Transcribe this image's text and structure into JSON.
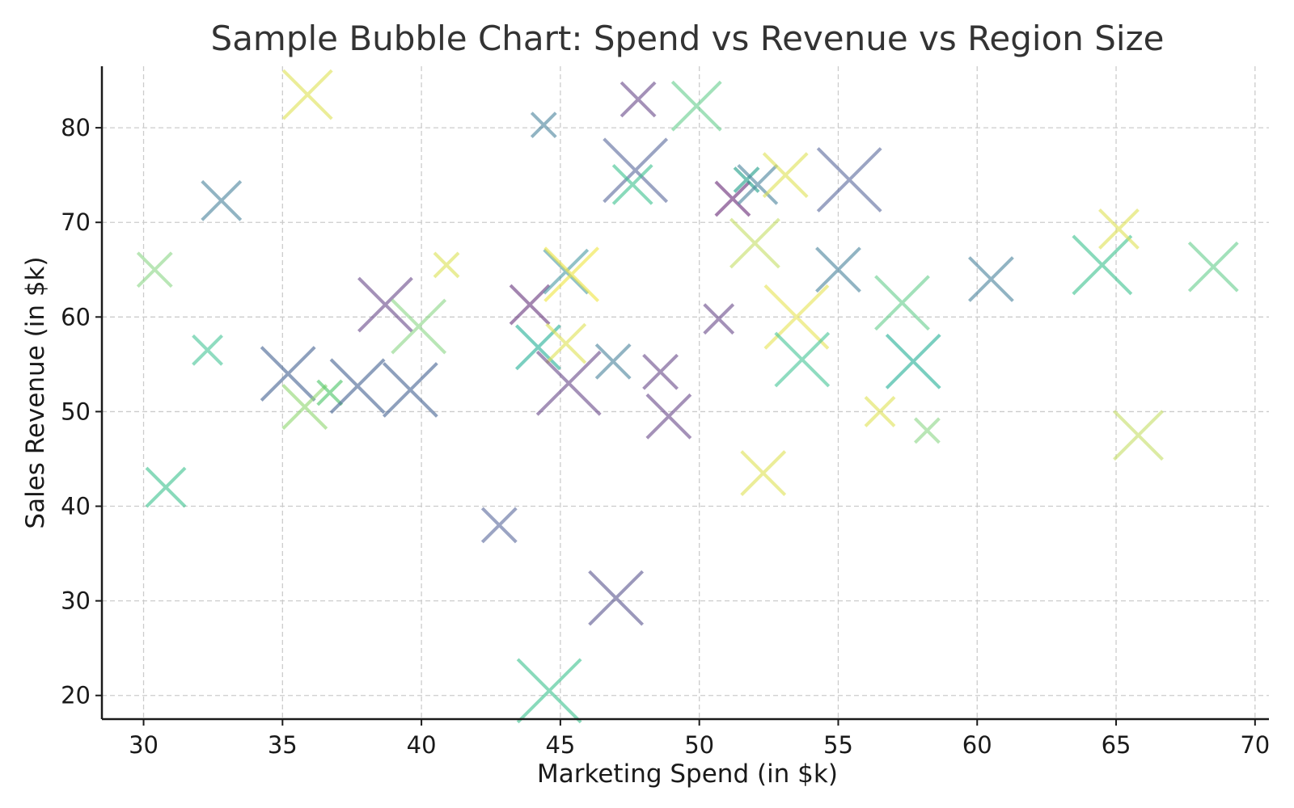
{
  "chart_data": {
    "type": "scatter",
    "marker": "x",
    "title": "Sample Bubble Chart: Spend vs Revenue vs Region Size",
    "xlabel": "Marketing Spend (in $k)",
    "ylabel": "Sales Revenue (in $k)",
    "xlim": [
      28.5,
      70.5
    ],
    "ylim": [
      17.5,
      86.5
    ],
    "xticks": [
      "30",
      "35",
      "40",
      "45",
      "50",
      "55",
      "60",
      "65",
      "70"
    ],
    "yticks": [
      "20",
      "30",
      "40",
      "50",
      "60",
      "70",
      "80"
    ],
    "grid": true,
    "legend": "none",
    "points": [
      {
        "x": 35.9,
        "y": 83.5,
        "size": 1.0,
        "color": "#e0e35a"
      },
      {
        "x": 32.8,
        "y": 72.3,
        "size": 0.8,
        "color": "#4f87a0"
      },
      {
        "x": 30.4,
        "y": 65.0,
        "size": 0.7,
        "color": "#8fd78a"
      },
      {
        "x": 32.3,
        "y": 56.5,
        "size": 0.6,
        "color": "#4cc79b"
      },
      {
        "x": 30.8,
        "y": 42.0,
        "size": 0.8,
        "color": "#42c492"
      },
      {
        "x": 35.2,
        "y": 54.0,
        "size": 1.1,
        "color": "#4a6796"
      },
      {
        "x": 35.8,
        "y": 50.5,
        "size": 0.9,
        "color": "#92d873"
      },
      {
        "x": 36.7,
        "y": 52.0,
        "size": 0.5,
        "color": "#4ec66a"
      },
      {
        "x": 37.7,
        "y": 52.7,
        "size": 1.1,
        "color": "#4a6796"
      },
      {
        "x": 38.7,
        "y": 61.3,
        "size": 1.1,
        "color": "#6e4e8e"
      },
      {
        "x": 39.6,
        "y": 52.3,
        "size": 1.1,
        "color": "#4a6796"
      },
      {
        "x": 39.9,
        "y": 59.0,
        "size": 1.1,
        "color": "#8fd78a"
      },
      {
        "x": 40.9,
        "y": 65.5,
        "size": 0.5,
        "color": "#dde35a"
      },
      {
        "x": 42.8,
        "y": 38.0,
        "size": 0.7,
        "color": "#5e6ea0"
      },
      {
        "x": 44.4,
        "y": 80.3,
        "size": 0.5,
        "color": "#4f87a0"
      },
      {
        "x": 43.9,
        "y": 61.3,
        "size": 0.8,
        "color": "#6b3b80"
      },
      {
        "x": 44.2,
        "y": 56.8,
        "size": 0.9,
        "color": "#2ab29a"
      },
      {
        "x": 45.2,
        "y": 64.8,
        "size": 0.9,
        "color": "#4f9ea5"
      },
      {
        "x": 45.4,
        "y": 64.5,
        "size": 1.1,
        "color": "#f0e645"
      },
      {
        "x": 45.2,
        "y": 57.2,
        "size": 0.8,
        "color": "#e0e35a"
      },
      {
        "x": 45.3,
        "y": 53.0,
        "size": 1.3,
        "color": "#6e4e8e"
      },
      {
        "x": 44.6,
        "y": 20.5,
        "size": 1.3,
        "color": "#42c492"
      },
      {
        "x": 46.9,
        "y": 55.3,
        "size": 0.7,
        "color": "#4f87a0"
      },
      {
        "x": 47.0,
        "y": 30.3,
        "size": 1.1,
        "color": "#5e5a92"
      },
      {
        "x": 47.8,
        "y": 83.0,
        "size": 0.7,
        "color": "#6e4e8e"
      },
      {
        "x": 47.7,
        "y": 75.5,
        "size": 1.3,
        "color": "#5e6ea0"
      },
      {
        "x": 47.6,
        "y": 74.0,
        "size": 0.8,
        "color": "#42c492"
      },
      {
        "x": 48.6,
        "y": 54.2,
        "size": 0.7,
        "color": "#6e4e8e"
      },
      {
        "x": 48.9,
        "y": 49.5,
        "size": 0.9,
        "color": "#6e4e8e"
      },
      {
        "x": 49.9,
        "y": 82.3,
        "size": 1.0,
        "color": "#6acf91"
      },
      {
        "x": 50.7,
        "y": 59.8,
        "size": 0.6,
        "color": "#6e4e8e"
      },
      {
        "x": 51.2,
        "y": 72.5,
        "size": 0.7,
        "color": "#6b2e7a"
      },
      {
        "x": 51.7,
        "y": 74.5,
        "size": 0.5,
        "color": "#21a08a"
      },
      {
        "x": 52.1,
        "y": 74.0,
        "size": 0.8,
        "color": "#4f87a0"
      },
      {
        "x": 53.1,
        "y": 75.0,
        "size": 0.9,
        "color": "#e0e35a"
      },
      {
        "x": 52.0,
        "y": 67.8,
        "size": 1.0,
        "color": "#c8e06c"
      },
      {
        "x": 52.3,
        "y": 43.5,
        "size": 0.9,
        "color": "#e0e35a"
      },
      {
        "x": 53.5,
        "y": 60.0,
        "size": 1.3,
        "color": "#e8e45a"
      },
      {
        "x": 53.7,
        "y": 55.5,
        "size": 1.1,
        "color": "#4cc79b"
      },
      {
        "x": 55.4,
        "y": 74.5,
        "size": 1.3,
        "color": "#5e6ea0"
      },
      {
        "x": 55.0,
        "y": 65.0,
        "size": 0.9,
        "color": "#4f87a0"
      },
      {
        "x": 56.5,
        "y": 50.0,
        "size": 0.6,
        "color": "#e0e35a"
      },
      {
        "x": 57.3,
        "y": 61.5,
        "size": 1.1,
        "color": "#6acf91"
      },
      {
        "x": 57.7,
        "y": 55.3,
        "size": 1.1,
        "color": "#2ab29a"
      },
      {
        "x": 58.2,
        "y": 48.0,
        "size": 0.5,
        "color": "#8fd78a"
      },
      {
        "x": 60.5,
        "y": 64.0,
        "size": 0.9,
        "color": "#4f87a0"
      },
      {
        "x": 64.5,
        "y": 65.5,
        "size": 1.2,
        "color": "#42c492"
      },
      {
        "x": 65.1,
        "y": 69.3,
        "size": 0.8,
        "color": "#e0e35a"
      },
      {
        "x": 65.8,
        "y": 47.5,
        "size": 1.0,
        "color": "#c8e06c"
      },
      {
        "x": 68.5,
        "y": 65.3,
        "size": 1.0,
        "color": "#6acf91"
      }
    ]
  }
}
